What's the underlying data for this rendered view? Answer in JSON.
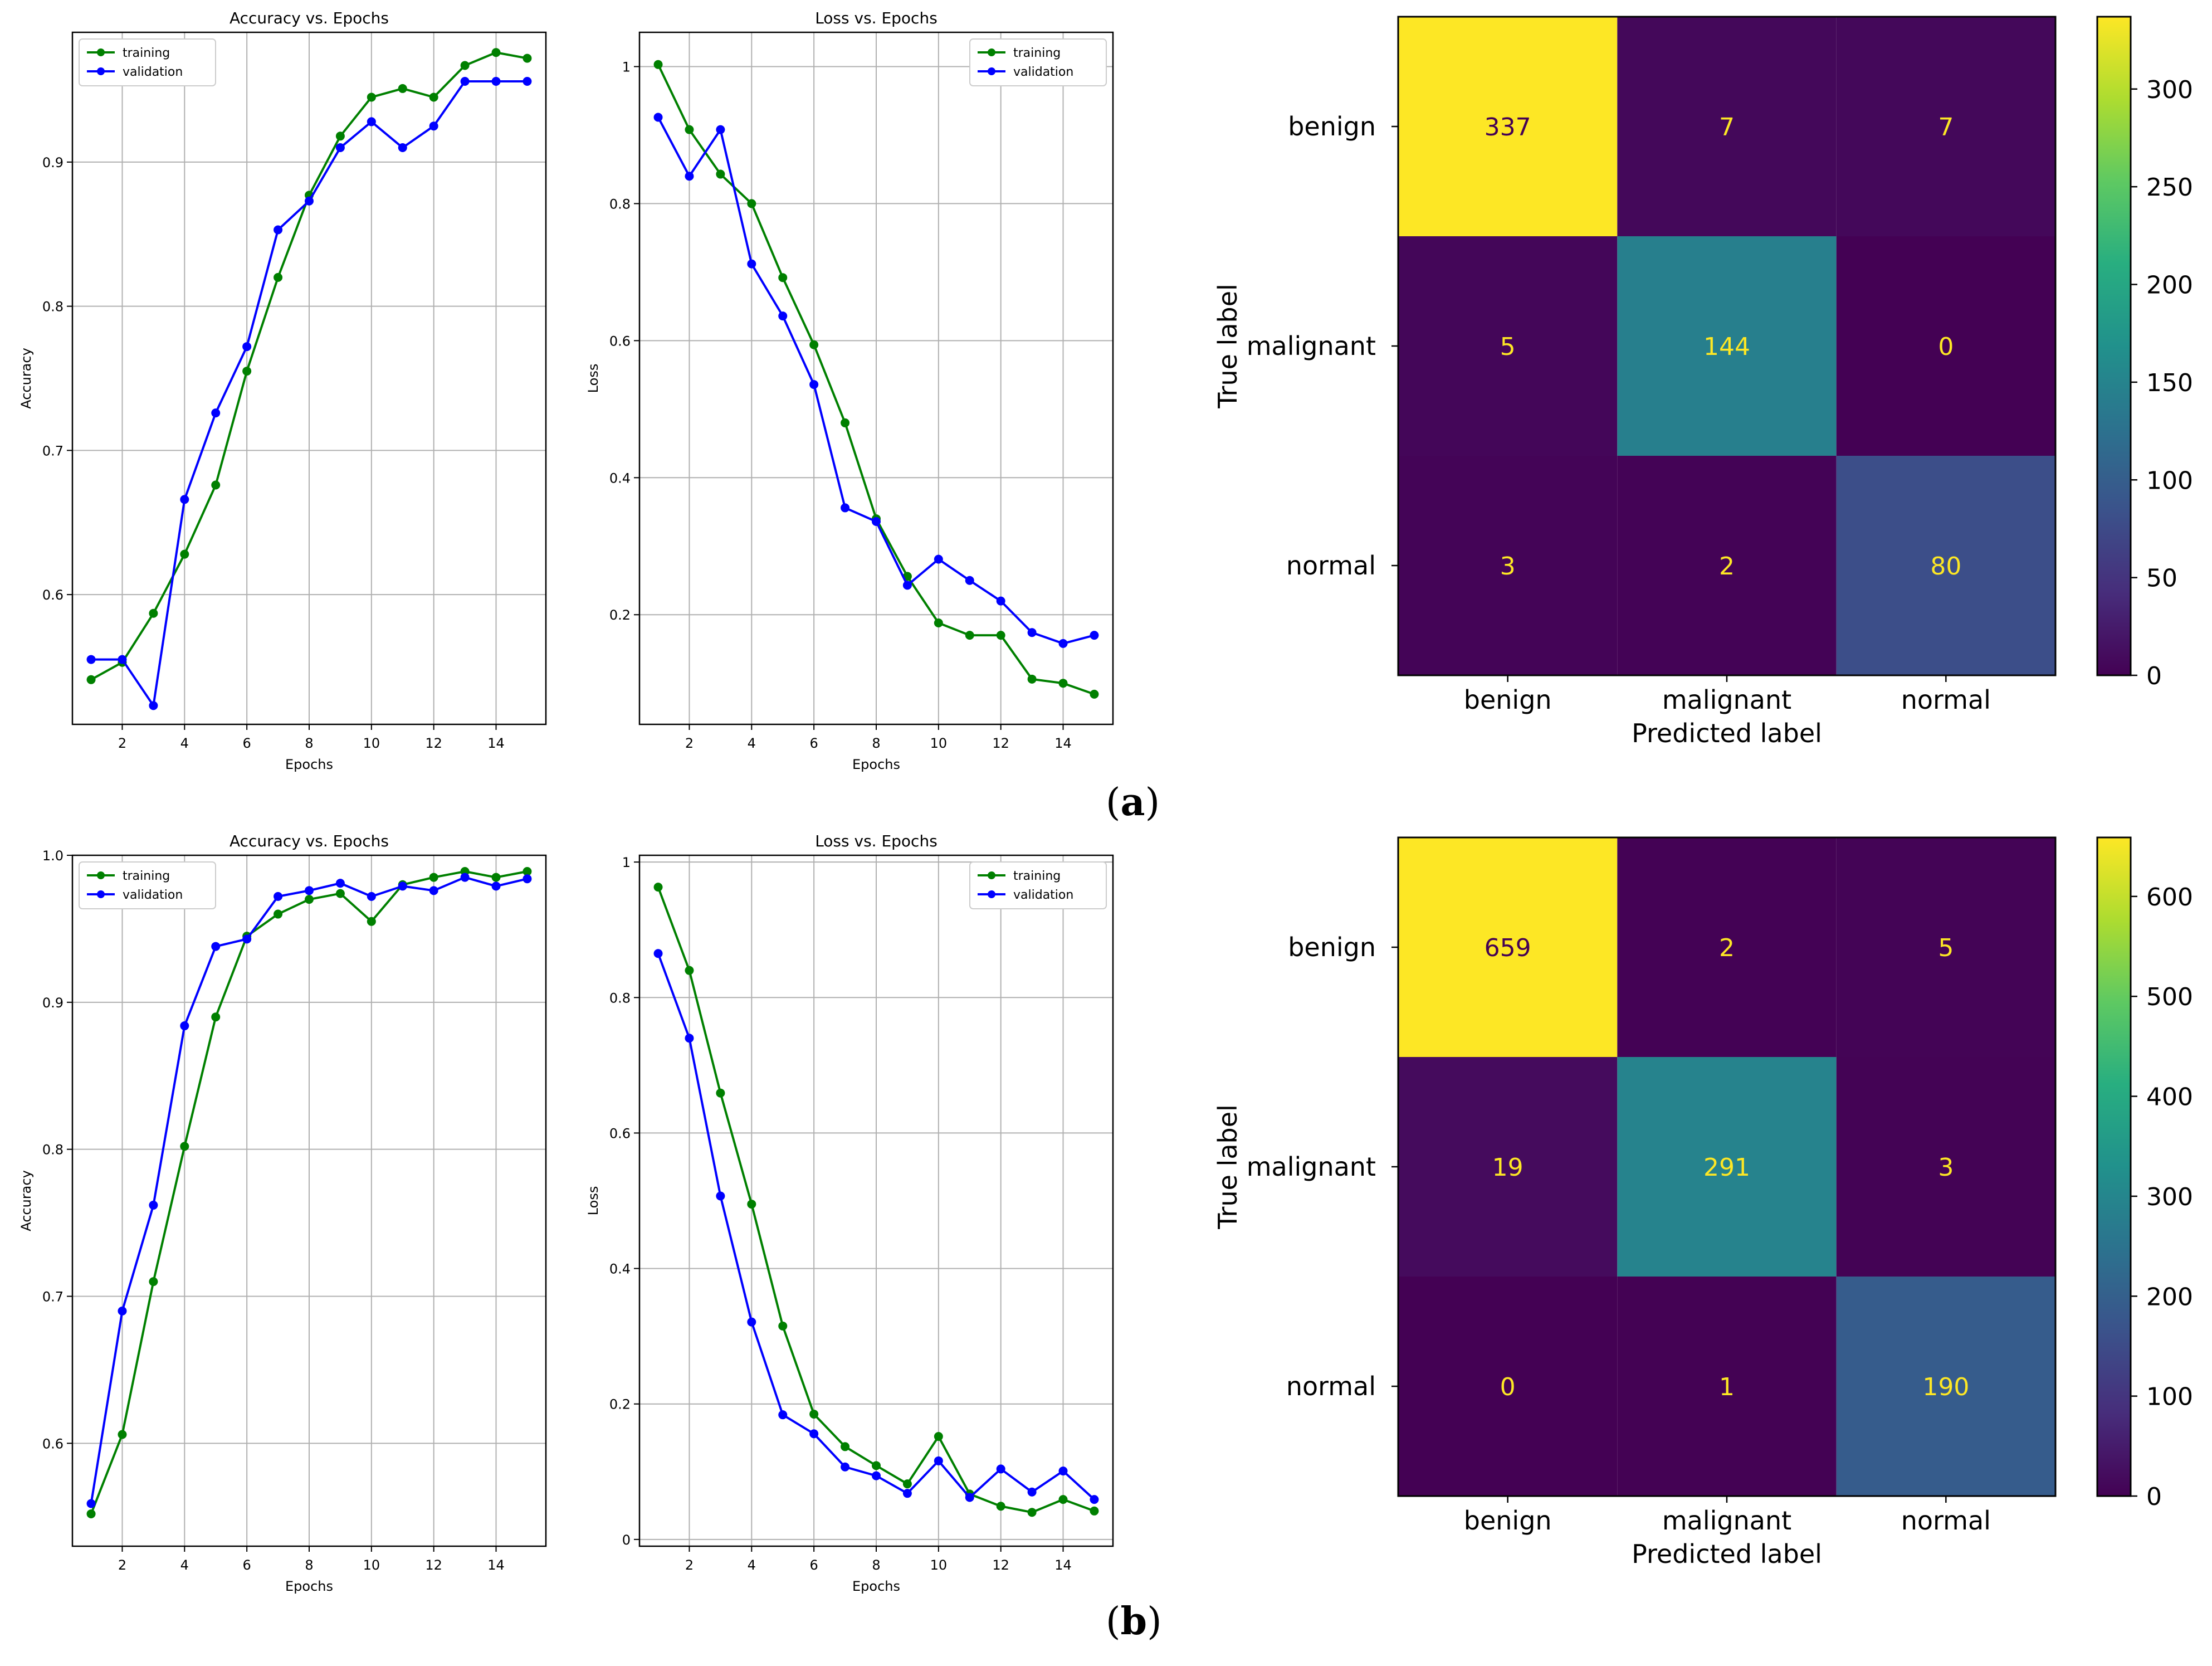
{
  "panels": [
    {
      "label_open": "(",
      "label_letter": "a",
      "label_close": ")"
    },
    {
      "label_open": "(",
      "label_letter": "b",
      "label_close": ")"
    }
  ],
  "colors": {
    "training": "#008000",
    "validation": "#0000ff",
    "grid": "#b0b0b0"
  },
  "chart_data": [
    {
      "id": "a-accuracy",
      "type": "line",
      "title": "Accuracy vs. Epochs",
      "xlabel": "Epochs",
      "ylabel": "Accuracy",
      "x": [
        1,
        2,
        3,
        4,
        5,
        6,
        7,
        8,
        9,
        10,
        11,
        12,
        13,
        14,
        15
      ],
      "xlim": [
        0.4,
        15.6
      ],
      "ylim": [
        0.51,
        0.99
      ],
      "xticks": [
        2,
        4,
        6,
        8,
        10,
        12,
        14
      ],
      "yticks": [
        0.6,
        0.7,
        0.8,
        0.9
      ],
      "legend": "top-left",
      "series": [
        {
          "name": "training",
          "color": "#008000",
          "values": [
            0.541,
            0.553,
            0.587,
            0.628,
            0.676,
            0.755,
            0.82,
            0.877,
            0.918,
            0.945,
            0.951,
            0.945,
            0.967,
            0.976,
            0.972
          ]
        },
        {
          "name": "validation",
          "color": "#0000ff",
          "values": [
            0.555,
            0.555,
            0.523,
            0.666,
            0.726,
            0.772,
            0.853,
            0.873,
            0.91,
            0.928,
            0.91,
            0.925,
            0.956,
            0.956,
            0.956
          ]
        }
      ]
    },
    {
      "id": "a-loss",
      "type": "line",
      "title": "Loss vs. Epochs",
      "xlabel": "Epochs",
      "ylabel": "Loss",
      "x": [
        1,
        2,
        3,
        4,
        5,
        6,
        7,
        8,
        9,
        10,
        11,
        12,
        13,
        14,
        15
      ],
      "xlim": [
        0.4,
        15.6
      ],
      "ylim": [
        0.04,
        1.05
      ],
      "xticks": [
        2,
        4,
        6,
        8,
        10,
        12,
        14
      ],
      "yticks": [
        0.2,
        0.4,
        0.6,
        0.8,
        1.0
      ],
      "legend": "top-right",
      "series": [
        {
          "name": "training",
          "color": "#008000",
          "values": [
            1.003,
            0.908,
            0.843,
            0.8,
            0.692,
            0.594,
            0.48,
            0.34,
            0.256,
            0.188,
            0.17,
            0.17,
            0.106,
            0.1,
            0.084
          ]
        },
        {
          "name": "validation",
          "color": "#0000ff",
          "values": [
            0.926,
            0.84,
            0.908,
            0.712,
            0.636,
            0.536,
            0.356,
            0.336,
            0.243,
            0.281,
            0.25,
            0.22,
            0.174,
            0.158,
            0.17
          ]
        }
      ]
    },
    {
      "id": "a-confusion",
      "type": "heatmap",
      "xlabel": "Predicted label",
      "ylabel": "True label",
      "rows": [
        "benign",
        "malignant",
        "normal"
      ],
      "columns": [
        "benign",
        "malignant",
        "normal"
      ],
      "values": [
        [
          337,
          7,
          7
        ],
        [
          5,
          144,
          0
        ],
        [
          3,
          2,
          80
        ]
      ],
      "vmin": 0,
      "vmax": 337,
      "colorbar_ticks": [
        0,
        50,
        100,
        150,
        200,
        250,
        300
      ]
    },
    {
      "id": "b-accuracy",
      "type": "line",
      "title": "Accuracy vs. Epochs",
      "xlabel": "Epochs",
      "ylabel": "Accuracy",
      "x": [
        1,
        2,
        3,
        4,
        5,
        6,
        7,
        8,
        9,
        10,
        11,
        12,
        13,
        14,
        15
      ],
      "xlim": [
        0.4,
        15.6
      ],
      "ylim": [
        0.53,
        1.0
      ],
      "xticks": [
        2,
        4,
        6,
        8,
        10,
        12,
        14
      ],
      "yticks": [
        0.6,
        0.7,
        0.8,
        0.9,
        1.0
      ],
      "legend": "top-left",
      "series": [
        {
          "name": "training",
          "color": "#008000",
          "values": [
            0.552,
            0.606,
            0.71,
            0.802,
            0.89,
            0.945,
            0.96,
            0.97,
            0.974,
            0.955,
            0.98,
            0.985,
            0.989,
            0.985,
            0.989
          ]
        },
        {
          "name": "validation",
          "color": "#0000ff",
          "values": [
            0.559,
            0.69,
            0.762,
            0.884,
            0.938,
            0.943,
            0.972,
            0.976,
            0.981,
            0.972,
            0.979,
            0.976,
            0.985,
            0.979,
            0.984
          ]
        }
      ]
    },
    {
      "id": "b-loss",
      "type": "line",
      "title": "Loss vs. Epochs",
      "xlabel": "Epochs",
      "ylabel": "Loss",
      "x": [
        1,
        2,
        3,
        4,
        5,
        6,
        7,
        8,
        9,
        10,
        11,
        12,
        13,
        14,
        15
      ],
      "xlim": [
        0.4,
        15.6
      ],
      "ylim": [
        -0.01,
        1.01
      ],
      "xticks": [
        2,
        4,
        6,
        8,
        10,
        12,
        14
      ],
      "yticks": [
        0.0,
        0.2,
        0.4,
        0.6,
        0.8,
        1.0
      ],
      "legend": "top-right",
      "series": [
        {
          "name": "training",
          "color": "#008000",
          "values": [
            0.963,
            0.84,
            0.659,
            0.495,
            0.315,
            0.185,
            0.137,
            0.109,
            0.082,
            0.152,
            0.067,
            0.049,
            0.04,
            0.059,
            0.042
          ]
        },
        {
          "name": "validation",
          "color": "#0000ff",
          "values": [
            0.865,
            0.74,
            0.507,
            0.321,
            0.184,
            0.156,
            0.107,
            0.094,
            0.068,
            0.116,
            0.062,
            0.104,
            0.07,
            0.101,
            0.059
          ]
        }
      ]
    },
    {
      "id": "b-confusion",
      "type": "heatmap",
      "xlabel": "Predicted label",
      "ylabel": "True label",
      "rows": [
        "benign",
        "malignant",
        "normal"
      ],
      "columns": [
        "benign",
        "malignant",
        "normal"
      ],
      "values": [
        [
          659,
          2,
          5
        ],
        [
          19,
          291,
          3
        ],
        [
          0,
          1,
          190
        ]
      ],
      "vmin": 0,
      "vmax": 659,
      "colorbar_ticks": [
        0,
        100,
        200,
        300,
        400,
        500,
        600
      ]
    }
  ]
}
